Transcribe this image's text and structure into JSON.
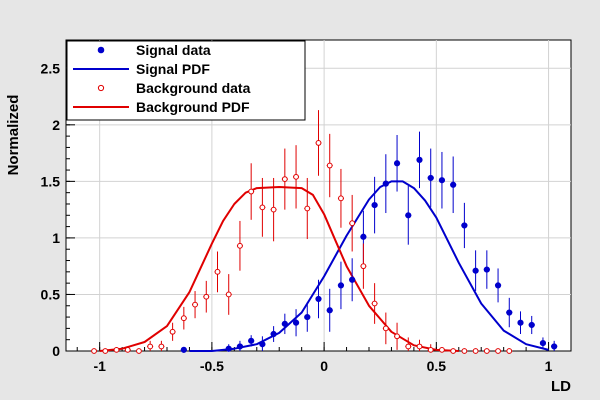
{
  "chart_data": {
    "type": "scatter",
    "title": "",
    "xlabel": "LD",
    "ylabel": "Normalized",
    "xlim": [
      -1.15,
      1.1
    ],
    "ylim": [
      0,
      2.75
    ],
    "xticks": [
      -1,
      -0.5,
      0,
      0.5,
      1
    ],
    "xtick_labels": [
      "-1",
      "-0.5",
      "0",
      "0.5",
      "1"
    ],
    "yticks": [
      0,
      0.5,
      1,
      1.5,
      2,
      2.5
    ],
    "ytick_labels": [
      "0",
      "0.5",
      "1",
      "1.5",
      "2",
      "2.5"
    ],
    "grid": true,
    "legend_position": "top-left",
    "colors": {
      "signal": "#0000cc",
      "background": "#e00000",
      "plot_bg": "#ffffff",
      "page_bg": "#e6e6e6"
    },
    "series": [
      {
        "name": "Signal data",
        "kind": "points",
        "marker": "filled-circle",
        "color": "#0000cc",
        "x": [
          -0.625,
          -0.425,
          -0.375,
          -0.325,
          -0.275,
          -0.225,
          -0.175,
          -0.125,
          -0.075,
          -0.025,
          0.025,
          0.075,
          0.125,
          0.175,
          0.225,
          0.275,
          0.325,
          0.375,
          0.425,
          0.475,
          0.525,
          0.575,
          0.625,
          0.675,
          0.725,
          0.775,
          0.825,
          0.875,
          0.925,
          0.975,
          1.025
        ],
        "y": [
          0.01,
          0.02,
          0.04,
          0.09,
          0.06,
          0.15,
          0.24,
          0.25,
          0.3,
          0.46,
          0.36,
          0.58,
          0.63,
          1.01,
          1.29,
          1.48,
          1.66,
          1.2,
          1.69,
          1.53,
          1.51,
          1.47,
          1.11,
          0.71,
          0.72,
          0.58,
          0.34,
          0.25,
          0.23,
          0.07,
          0.04
        ],
        "yerr": [
          0.02,
          0.04,
          0.05,
          0.05,
          0.07,
          0.07,
          0.09,
          0.12,
          0.13,
          0.17,
          0.19,
          0.21,
          0.19,
          0.23,
          0.25,
          0.26,
          0.25,
          0.26,
          0.25,
          0.26,
          0.25,
          0.25,
          0.2,
          0.18,
          0.17,
          0.15,
          0.13,
          0.1,
          0.08,
          0.05,
          0.05
        ]
      },
      {
        "name": "Signal PDF",
        "kind": "curve",
        "color": "#0000cc",
        "x": [
          -0.6,
          -0.5,
          -0.4,
          -0.3,
          -0.2,
          -0.1,
          0,
          0.1,
          0.2,
          0.25,
          0.3,
          0.35,
          0.4,
          0.45,
          0.5,
          0.6,
          0.7,
          0.8,
          0.9,
          1.0
        ],
        "y": [
          0.0,
          0.0,
          0.02,
          0.06,
          0.16,
          0.34,
          0.66,
          1.02,
          1.34,
          1.45,
          1.5,
          1.5,
          1.44,
          1.33,
          1.18,
          0.78,
          0.42,
          0.18,
          0.06,
          0.01
        ]
      },
      {
        "name": "Background data",
        "kind": "points",
        "marker": "open-circle",
        "color": "#e00000",
        "x": [
          -1.025,
          -0.975,
          -0.925,
          -0.875,
          -0.825,
          -0.775,
          -0.725,
          -0.675,
          -0.625,
          -0.575,
          -0.525,
          -0.475,
          -0.425,
          -0.375,
          -0.325,
          -0.275,
          -0.225,
          -0.175,
          -0.125,
          -0.075,
          -0.025,
          0.025,
          0.075,
          0.125,
          0.175,
          0.225,
          0.275,
          0.325,
          0.375,
          0.425,
          0.475,
          0.525,
          0.575,
          0.625,
          0.675,
          0.725,
          0.775,
          0.825
        ],
        "y": [
          0.0,
          0.0,
          0.01,
          0.01,
          0.0,
          0.04,
          0.04,
          0.17,
          0.29,
          0.41,
          0.48,
          0.7,
          0.5,
          0.93,
          1.41,
          1.27,
          1.25,
          1.52,
          1.54,
          1.26,
          1.84,
          1.64,
          1.35,
          1.13,
          0.75,
          0.42,
          0.2,
          0.13,
          0.04,
          0.04,
          0.01,
          0.01,
          0.0,
          0.0,
          0.0,
          0.0,
          0.0,
          0.0
        ],
        "yerr": [
          0.01,
          0.01,
          0.02,
          0.02,
          0.01,
          0.05,
          0.05,
          0.08,
          0.1,
          0.12,
          0.14,
          0.18,
          0.18,
          0.22,
          0.25,
          0.26,
          0.28,
          0.27,
          0.28,
          0.27,
          0.29,
          0.28,
          0.26,
          0.25,
          0.2,
          0.18,
          0.14,
          0.12,
          0.08,
          0.06,
          0.05,
          0.02,
          0.01,
          0.01,
          0.01,
          0.01,
          0.01,
          0.01
        ]
      },
      {
        "name": "Background PDF",
        "kind": "curve",
        "color": "#e00000",
        "x": [
          -1.0,
          -0.9,
          -0.8,
          -0.7,
          -0.6,
          -0.5,
          -0.45,
          -0.4,
          -0.35,
          -0.3,
          -0.2,
          -0.1,
          -0.05,
          0,
          0.05,
          0.1,
          0.2,
          0.3,
          0.4,
          0.5,
          0.6
        ],
        "y": [
          0.0,
          0.02,
          0.08,
          0.22,
          0.52,
          0.95,
          1.15,
          1.3,
          1.4,
          1.44,
          1.45,
          1.44,
          1.38,
          1.21,
          0.98,
          0.75,
          0.4,
          0.17,
          0.05,
          0.01,
          0.0
        ]
      }
    ]
  }
}
